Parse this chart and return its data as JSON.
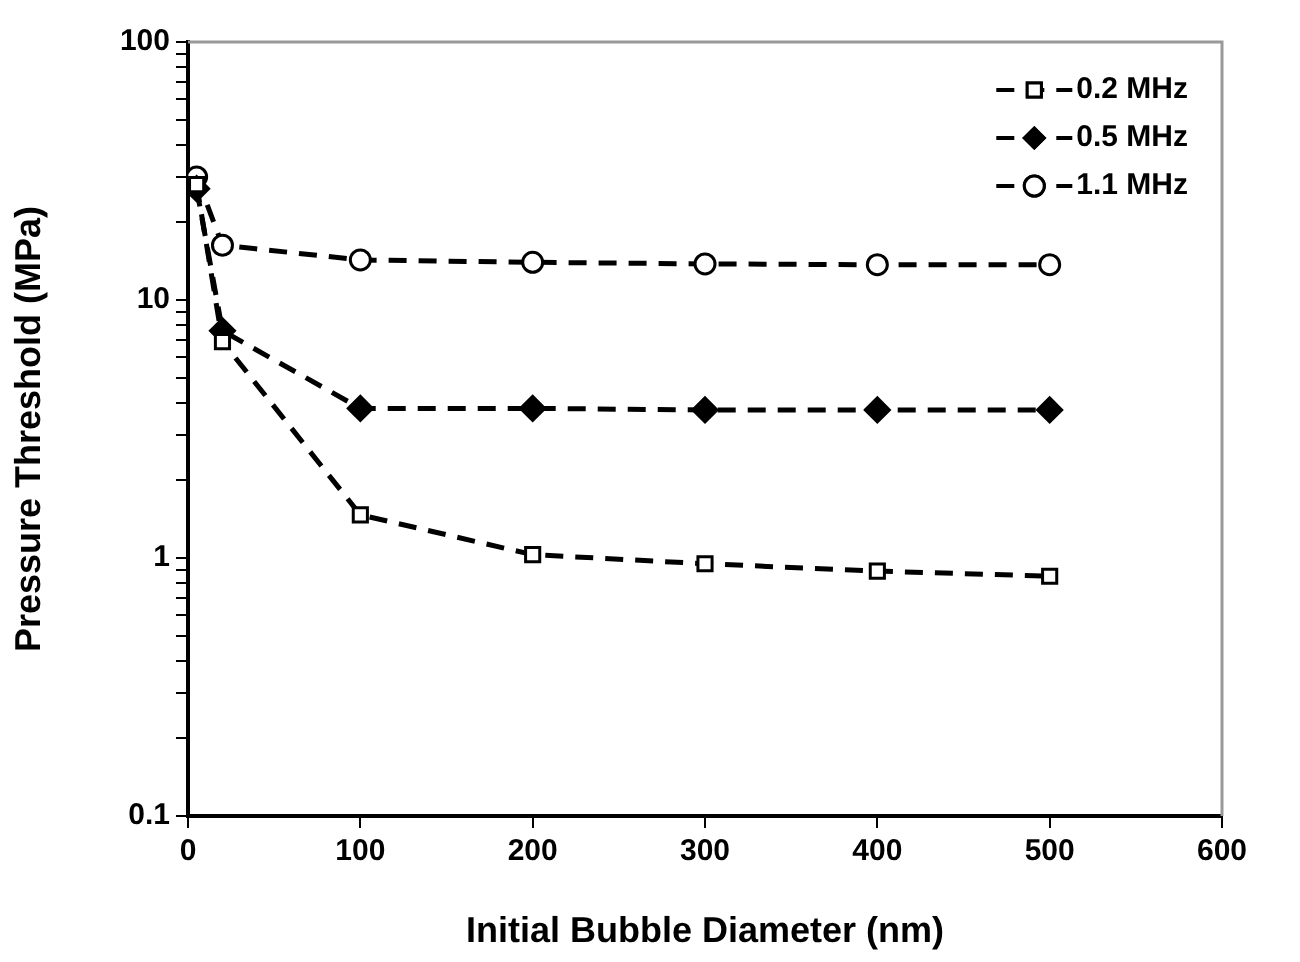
{
  "chart_data": {
    "type": "line",
    "xlabel": "Initial Bubble Diameter (nm)",
    "ylabel": "Pressure Threshold (MPa)",
    "x": [
      5,
      20,
      100,
      200,
      300,
      400,
      500
    ],
    "series": [
      {
        "name": "0.2 MHz",
        "color": "#000000",
        "marker": "square",
        "values": [
          28,
          6.9,
          1.47,
          1.03,
          0.95,
          0.89,
          0.85
        ]
      },
      {
        "name": "0.5 MHz",
        "color": "#000000",
        "marker": "diamond",
        "values": [
          27,
          7.6,
          3.8,
          3.8,
          3.75,
          3.75,
          3.75
        ]
      },
      {
        "name": "1.1 MHz",
        "color": "#000000",
        "marker": "circle",
        "values": [
          30,
          16.3,
          14.3,
          14,
          13.8,
          13.7,
          13.7
        ]
      }
    ],
    "xlim": [
      0,
      600
    ],
    "xticks": [
      0,
      100,
      200,
      300,
      400,
      500,
      600
    ],
    "log": "y",
    "ylim": [
      0.1,
      100
    ],
    "yticks": [
      0.1,
      {
        "value": 0.2,
        "label": null
      },
      {
        "value": 0.3,
        "label": null
      },
      {
        "value": 0.4,
        "label": null
      },
      {
        "value": 0.5,
        "label": null
      },
      {
        "value": 0.6,
        "label": null
      },
      {
        "value": 0.7,
        "label": null
      },
      {
        "value": 0.8,
        "label": null
      },
      {
        "value": 0.9,
        "label": null
      },
      1,
      {
        "value": 2,
        "label": null
      },
      {
        "value": 3,
        "label": null
      },
      {
        "value": 4,
        "label": null
      },
      {
        "value": 5,
        "label": null
      },
      {
        "value": 6,
        "label": null
      },
      {
        "value": 7,
        "label": null
      },
      {
        "value": 8,
        "label": null
      },
      {
        "value": 9,
        "label": null
      },
      10,
      {
        "value": 20,
        "label": null
      },
      {
        "value": 30,
        "label": null
      },
      {
        "value": 40,
        "label": null
      },
      {
        "value": 50,
        "label": null
      },
      {
        "value": 60,
        "label": null
      },
      {
        "value": 70,
        "label": null
      },
      {
        "value": 80,
        "label": null
      },
      {
        "value": 90,
        "label": null
      },
      100
    ],
    "grid": false,
    "legend": "top right",
    "line_style": "dashed"
  }
}
